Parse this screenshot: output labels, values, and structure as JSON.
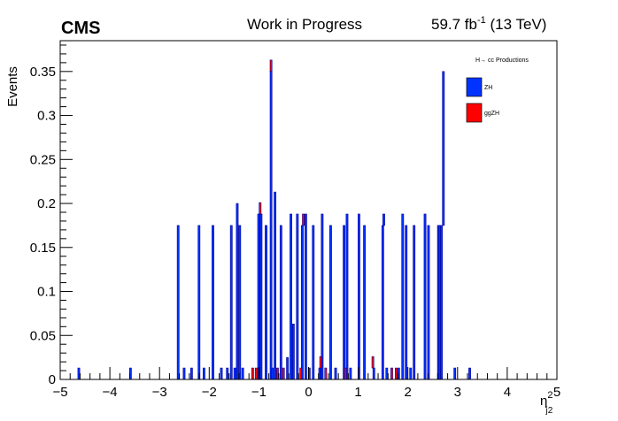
{
  "header": {
    "experiment": "CMS",
    "status": "Work in Progress",
    "lumi_value": "59.7 fb",
    "lumi_exp": "-1",
    "lumi_energy": " (13 TeV)"
  },
  "legend": {
    "title": "H→ cc Productions",
    "entries": [
      {
        "label": "ZH",
        "color": "#0033ff"
      },
      {
        "label": "ggZH",
        "color": "#ff0000"
      }
    ]
  },
  "chart_data": {
    "type": "bar",
    "stacked": true,
    "xlabel_base": "η",
    "xlabel_sup": "2",
    "xlabel_sub": "j2",
    "ylabel": "Events",
    "xlim": [
      -5,
      5
    ],
    "ylim": [
      0,
      0.385
    ],
    "x_ticks": [
      "−5",
      "−4",
      "−3",
      "−2",
      "−1",
      "0",
      "1",
      "2",
      "3",
      "4",
      "5"
    ],
    "y_ticks": [
      "0",
      "0.05",
      "0.1",
      "0.15",
      "0.2",
      "0.25",
      "0.3",
      "0.35"
    ],
    "outline_color": "#000099",
    "series": [
      {
        "name": "ZH",
        "color": "#0033ff",
        "x": [
          -4.62,
          -3.58,
          -2.62,
          -2.5,
          -2.35,
          -2.2,
          -2.1,
          -1.92,
          -1.75,
          -1.63,
          -1.55,
          -1.48,
          -1.43,
          -1.38,
          -1.32,
          -1.0,
          -0.95,
          -0.85,
          -0.75,
          -0.72,
          -0.67,
          -0.55,
          -0.42,
          -0.35,
          -0.3,
          -0.22,
          -0.12,
          -0.05,
          0.02,
          0.1,
          0.23,
          0.28,
          0.45,
          0.55,
          0.72,
          0.78,
          0.85,
          1.02,
          1.13,
          1.32,
          1.5,
          1.52,
          1.58,
          1.82,
          1.9,
          1.97,
          2.06,
          2.13,
          2.35,
          2.42,
          2.62,
          2.64,
          2.68,
          2.72,
          2.95,
          3.25
        ],
        "values": [
          0.013,
          0.013,
          0.175,
          0.013,
          0.013,
          0.175,
          0.013,
          0.175,
          0.013,
          0.013,
          0.175,
          0.013,
          0.2,
          0.175,
          0.013,
          0.188,
          0.188,
          0.175,
          0.35,
          0.013,
          0.213,
          0.175,
          0.025,
          0.188,
          0.063,
          0.188,
          0.175,
          0.188,
          0.013,
          0.175,
          0.013,
          0.188,
          0.175,
          0.013,
          0.175,
          0.188,
          0.013,
          0.188,
          0.175,
          0.013,
          0.175,
          0.013,
          0.013,
          0.013,
          0.188,
          0.175,
          0.013,
          0.175,
          0.188,
          0.175,
          0.175,
          0.175,
          0.175,
          0.175,
          0.013,
          0.013
        ]
      },
      {
        "name": "ggZH",
        "color": "#ff0000",
        "x": [
          -0.97,
          -0.75,
          -0.62,
          -0.5,
          -0.15,
          0.25,
          0.75,
          1.3,
          1.68,
          1.77,
          0.35,
          -1.12,
          -1.05,
          -0.1
        ],
        "values": [
          0.013,
          0.013,
          0.013,
          0.013,
          0.013,
          0.013,
          0.013,
          0.013,
          0.013,
          0.013,
          0.013,
          0.013,
          0.013,
          0.013
        ]
      }
    ]
  }
}
